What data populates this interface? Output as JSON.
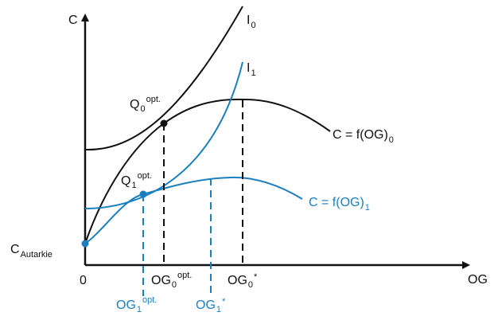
{
  "colors": {
    "black": "#111111",
    "blue": "#1a7fbf"
  },
  "axes": {
    "y_label": "C",
    "x_label": "OG",
    "origin_label": "0"
  },
  "labels": {
    "c_autarkie": {
      "main": "C",
      "sub": "Autarkie"
    },
    "i0": {
      "main": "I",
      "sub": "0"
    },
    "i1": {
      "main": "I",
      "sub": "1"
    },
    "q0": {
      "main": "Q",
      "sub": "0",
      "sup": "opt."
    },
    "q1": {
      "main": "Q",
      "sub": "1",
      "sup": "opt."
    },
    "f0": {
      "main": "C = f(OG)",
      "sub": "0"
    },
    "f1": {
      "main": "C = f(OG)",
      "sub": "1"
    },
    "og0_opt": {
      "main": "OG",
      "sub": "0",
      "sup": "opt."
    },
    "og0_star": {
      "main": "OG",
      "sub": "0",
      "sup": "*"
    },
    "og1_opt": {
      "main": "OG",
      "sub": "1",
      "sup": "opt."
    },
    "og1_star": {
      "main": "OG",
      "sub": "1",
      "sup": "*"
    }
  }
}
